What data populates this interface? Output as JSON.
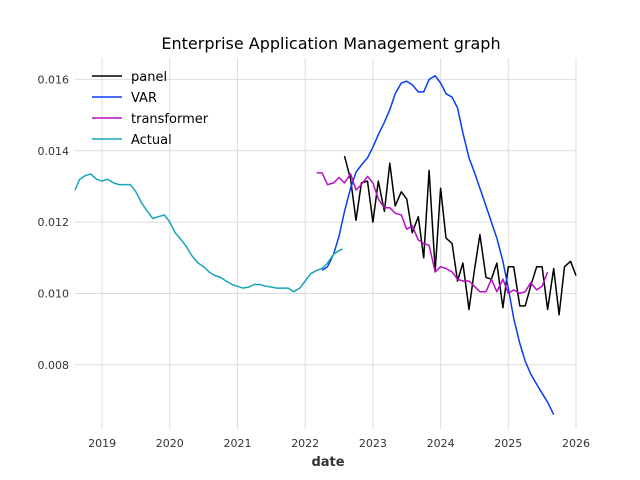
{
  "chart_data": {
    "type": "line",
    "title": "Enterprise Application Management graph",
    "xlabel": "date",
    "ylabel": "",
    "xlim": [
      2018.6,
      2026.0
    ],
    "ylim": [
      0.0062,
      0.0166
    ],
    "x_ticks": [
      2019,
      2020,
      2021,
      2022,
      2023,
      2024,
      2025,
      2026
    ],
    "x_tick_labels": [
      "2019",
      "2020",
      "2021",
      "2022",
      "2023",
      "2024",
      "2025",
      "2026"
    ],
    "y_ticks": [
      0.008,
      0.01,
      0.012,
      0.014,
      0.016
    ],
    "y_tick_labels": [
      "0.008",
      "0.010",
      "0.012",
      "0.014",
      "0.016"
    ],
    "grid": true,
    "legend_position": "top-left",
    "series": [
      {
        "name": "panel",
        "color": "#000000",
        "points": [
          [
            2022.58,
            0.01385
          ],
          [
            2022.67,
            0.0132
          ],
          [
            2022.75,
            0.01205
          ],
          [
            2022.83,
            0.0131
          ],
          [
            2022.92,
            0.01315
          ],
          [
            2023.0,
            0.012
          ],
          [
            2023.08,
            0.01315
          ],
          [
            2023.17,
            0.0123
          ],
          [
            2023.25,
            0.01365
          ],
          [
            2023.33,
            0.01245
          ],
          [
            2023.42,
            0.01285
          ],
          [
            2023.5,
            0.01265
          ],
          [
            2023.58,
            0.0117
          ],
          [
            2023.67,
            0.01215
          ],
          [
            2023.75,
            0.011
          ],
          [
            2023.83,
            0.01345
          ],
          [
            2023.92,
            0.01065
          ],
          [
            2024.0,
            0.01295
          ],
          [
            2024.08,
            0.01155
          ],
          [
            2024.17,
            0.0114
          ],
          [
            2024.25,
            0.01035
          ],
          [
            2024.33,
            0.01085
          ],
          [
            2024.42,
            0.00955
          ],
          [
            2024.5,
            0.01065
          ],
          [
            2024.58,
            0.01165
          ],
          [
            2024.67,
            0.01045
          ],
          [
            2024.75,
            0.0104
          ],
          [
            2024.83,
            0.01085
          ],
          [
            2024.92,
            0.0096
          ],
          [
            2025.0,
            0.01075
          ],
          [
            2025.08,
            0.01075
          ],
          [
            2025.17,
            0.00965
          ],
          [
            2025.25,
            0.00965
          ],
          [
            2025.33,
            0.0102
          ],
          [
            2025.42,
            0.01075
          ],
          [
            2025.5,
            0.01075
          ],
          [
            2025.58,
            0.00955
          ],
          [
            2025.67,
            0.0107
          ],
          [
            2025.75,
            0.0094
          ],
          [
            2025.83,
            0.01075
          ],
          [
            2025.92,
            0.0109
          ],
          [
            2026.0,
            0.0105
          ]
        ]
      },
      {
        "name": "VAR",
        "color": "#0b3cf5",
        "points": [
          [
            2022.25,
            0.01065
          ],
          [
            2022.33,
            0.01075
          ],
          [
            2022.42,
            0.0111
          ],
          [
            2022.5,
            0.0116
          ],
          [
            2022.58,
            0.0123
          ],
          [
            2022.67,
            0.01295
          ],
          [
            2022.75,
            0.0134
          ],
          [
            2022.83,
            0.0136
          ],
          [
            2022.92,
            0.0138
          ],
          [
            2023.0,
            0.0141
          ],
          [
            2023.08,
            0.01445
          ],
          [
            2023.17,
            0.0148
          ],
          [
            2023.25,
            0.01515
          ],
          [
            2023.33,
            0.0156
          ],
          [
            2023.42,
            0.0159
          ],
          [
            2023.5,
            0.01595
          ],
          [
            2023.58,
            0.01585
          ],
          [
            2023.67,
            0.01565
          ],
          [
            2023.75,
            0.01565
          ],
          [
            2023.83,
            0.016
          ],
          [
            2023.92,
            0.0161
          ],
          [
            2024.0,
            0.0159
          ],
          [
            2024.08,
            0.0156
          ],
          [
            2024.17,
            0.0155
          ],
          [
            2024.25,
            0.0152
          ],
          [
            2024.33,
            0.0145
          ],
          [
            2024.42,
            0.0138
          ],
          [
            2024.5,
            0.0134
          ],
          [
            2024.58,
            0.01295
          ],
          [
            2024.67,
            0.01245
          ],
          [
            2024.75,
            0.012
          ],
          [
            2024.83,
            0.01155
          ],
          [
            2024.92,
            0.0109
          ],
          [
            2025.0,
            0.01015
          ],
          [
            2025.08,
            0.0093
          ],
          [
            2025.17,
            0.0086
          ],
          [
            2025.25,
            0.0081
          ],
          [
            2025.33,
            0.00775
          ],
          [
            2025.42,
            0.00745
          ],
          [
            2025.5,
            0.0072
          ],
          [
            2025.58,
            0.00695
          ],
          [
            2025.67,
            0.0066
          ]
        ]
      },
      {
        "name": "transformer",
        "color": "#b70fc2",
        "points": [
          [
            2022.17,
            0.01338
          ],
          [
            2022.25,
            0.01338
          ],
          [
            2022.33,
            0.01305
          ],
          [
            2022.42,
            0.0131
          ],
          [
            2022.5,
            0.01325
          ],
          [
            2022.58,
            0.0131
          ],
          [
            2022.67,
            0.01335
          ],
          [
            2022.75,
            0.0129
          ],
          [
            2022.83,
            0.01305
          ],
          [
            2022.92,
            0.01328
          ],
          [
            2023.0,
            0.0131
          ],
          [
            2023.08,
            0.01265
          ],
          [
            2023.17,
            0.0124
          ],
          [
            2023.25,
            0.0124
          ],
          [
            2023.33,
            0.01225
          ],
          [
            2023.42,
            0.0122
          ],
          [
            2023.5,
            0.0118
          ],
          [
            2023.58,
            0.0119
          ],
          [
            2023.67,
            0.0115
          ],
          [
            2023.75,
            0.0114
          ],
          [
            2023.83,
            0.01135
          ],
          [
            2023.92,
            0.0106
          ],
          [
            2024.0,
            0.01075
          ],
          [
            2024.08,
            0.0107
          ],
          [
            2024.17,
            0.0106
          ],
          [
            2024.25,
            0.0104
          ],
          [
            2024.33,
            0.01035
          ],
          [
            2024.42,
            0.01035
          ],
          [
            2024.5,
            0.0102
          ],
          [
            2024.58,
            0.01005
          ],
          [
            2024.67,
            0.01005
          ],
          [
            2024.75,
            0.0104
          ],
          [
            2024.83,
            0.01005
          ],
          [
            2024.92,
            0.0104
          ],
          [
            2025.0,
            0.01
          ],
          [
            2025.08,
            0.0101
          ],
          [
            2025.17,
            0.01
          ],
          [
            2025.25,
            0.01005
          ],
          [
            2025.33,
            0.0103
          ],
          [
            2025.42,
            0.0101
          ],
          [
            2025.5,
            0.0102
          ],
          [
            2025.58,
            0.0106
          ]
        ]
      },
      {
        "name": "Actual",
        "color": "#17a6b8",
        "points": [
          [
            2018.6,
            0.0129
          ],
          [
            2018.67,
            0.0132
          ],
          [
            2018.75,
            0.0133
          ],
          [
            2018.83,
            0.01335
          ],
          [
            2018.92,
            0.0132
          ],
          [
            2019.0,
            0.01315
          ],
          [
            2019.08,
            0.0132
          ],
          [
            2019.17,
            0.0131
          ],
          [
            2019.25,
            0.01305
          ],
          [
            2019.33,
            0.01305
          ],
          [
            2019.42,
            0.01305
          ],
          [
            2019.5,
            0.01285
          ],
          [
            2019.58,
            0.01255
          ],
          [
            2019.67,
            0.0123
          ],
          [
            2019.75,
            0.0121
          ],
          [
            2019.83,
            0.01215
          ],
          [
            2019.92,
            0.0122
          ],
          [
            2020.0,
            0.012
          ],
          [
            2020.08,
            0.0117
          ],
          [
            2020.17,
            0.0115
          ],
          [
            2020.25,
            0.0113
          ],
          [
            2020.33,
            0.01105
          ],
          [
            2020.42,
            0.01085
          ],
          [
            2020.5,
            0.01075
          ],
          [
            2020.58,
            0.0106
          ],
          [
            2020.67,
            0.0105
          ],
          [
            2020.75,
            0.01045
          ],
          [
            2020.83,
            0.01035
          ],
          [
            2020.92,
            0.01025
          ],
          [
            2021.0,
            0.0102
          ],
          [
            2021.08,
            0.01015
          ],
          [
            2021.17,
            0.01018
          ],
          [
            2021.25,
            0.01025
          ],
          [
            2021.33,
            0.01025
          ],
          [
            2021.42,
            0.0102
          ],
          [
            2021.5,
            0.01018
          ],
          [
            2021.58,
            0.01015
          ],
          [
            2021.67,
            0.01015
          ],
          [
            2021.75,
            0.01015
          ],
          [
            2021.83,
            0.01005
          ],
          [
            2021.92,
            0.01015
          ],
          [
            2022.0,
            0.01035
          ],
          [
            2022.08,
            0.01055
          ],
          [
            2022.17,
            0.01065
          ],
          [
            2022.25,
            0.0107
          ],
          [
            2022.33,
            0.01085
          ],
          [
            2022.42,
            0.0111
          ],
          [
            2022.5,
            0.0112
          ],
          [
            2022.55,
            0.01125
          ]
        ]
      }
    ]
  }
}
